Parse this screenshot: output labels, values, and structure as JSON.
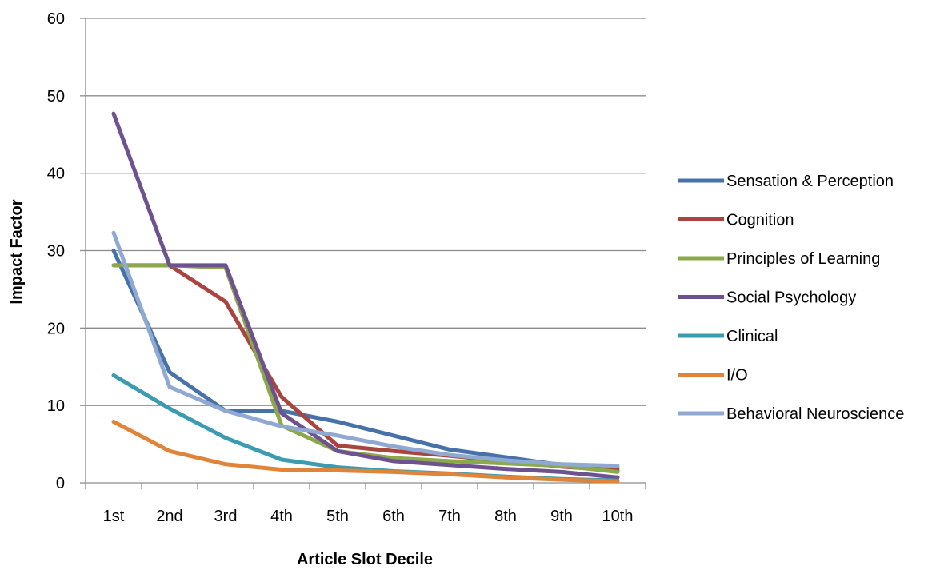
{
  "chart_data": {
    "type": "line",
    "title": "",
    "xlabel": "Article Slot Decile",
    "ylabel": "Impact Factor",
    "categories": [
      "1st",
      "2nd",
      "3rd",
      "4th",
      "5th",
      "6th",
      "7th",
      "8th",
      "9th",
      "10th"
    ],
    "ylim": [
      0,
      60
    ],
    "yticks": [
      0,
      10,
      20,
      30,
      40,
      50,
      60
    ],
    "grid": true,
    "legend_position": "right",
    "series": [
      {
        "name": "Sensation & Perception",
        "color": "#4672A8",
        "values": [
          30.0,
          14.3,
          9.3,
          9.3,
          7.9,
          6.1,
          4.3,
          3.3,
          2.3,
          1.9
        ]
      },
      {
        "name": "Cognition",
        "color": "#A9443F",
        "values": [
          28.1,
          28.1,
          23.4,
          11.1,
          4.8,
          4.1,
          3.5,
          2.8,
          2.1,
          1.6
        ]
      },
      {
        "name": "Principles of Learning",
        "color": "#8BA84A",
        "values": [
          28.1,
          28.1,
          27.8,
          7.4,
          4.1,
          3.2,
          2.8,
          2.5,
          2.2,
          1.4
        ]
      },
      {
        "name": "Social Psychology",
        "color": "#6E528F",
        "values": [
          47.7,
          28.1,
          28.1,
          9.0,
          4.1,
          2.8,
          2.3,
          1.8,
          1.4,
          0.7
        ]
      },
      {
        "name": "Clinical",
        "color": "#3A9BB1",
        "values": [
          13.9,
          9.6,
          5.8,
          3.0,
          2.0,
          1.5,
          1.2,
          0.8,
          0.5,
          0.3
        ]
      },
      {
        "name": "I/O",
        "color": "#E0843A",
        "values": [
          7.9,
          4.1,
          2.4,
          1.7,
          1.6,
          1.4,
          1.1,
          0.7,
          0.4,
          0.2
        ]
      },
      {
        "name": "Behavioral Neuroscience",
        "color": "#8FA9D3",
        "values": [
          32.3,
          12.4,
          9.3,
          7.3,
          6.1,
          4.7,
          3.6,
          2.9,
          2.4,
          2.2
        ]
      }
    ]
  }
}
